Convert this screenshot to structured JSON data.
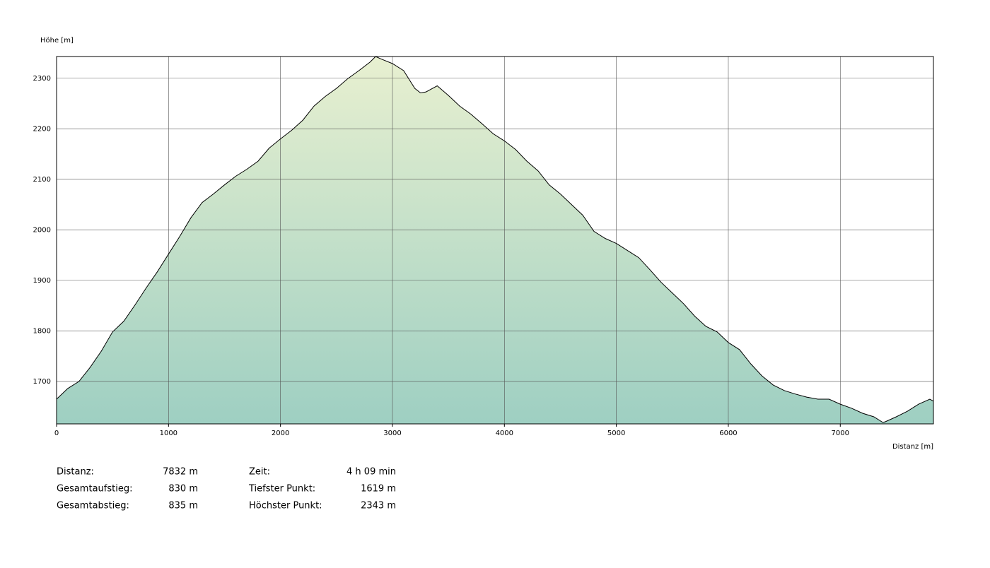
{
  "chart_data": {
    "type": "area",
    "y_label": "Höhe [m]",
    "x_label": "Distanz [m]",
    "x": [
      0,
      100,
      200,
      300,
      400,
      500,
      600,
      700,
      800,
      900,
      1000,
      1100,
      1200,
      1300,
      1400,
      1500,
      1600,
      1700,
      1800,
      1900,
      2000,
      2100,
      2200,
      2300,
      2400,
      2500,
      2600,
      2700,
      2800,
      2850,
      2900,
      3000,
      3100,
      3200,
      3250,
      3300,
      3400,
      3500,
      3600,
      3700,
      3800,
      3900,
      4000,
      4100,
      4200,
      4300,
      4400,
      4500,
      4600,
      4700,
      4800,
      4900,
      5000,
      5100,
      5200,
      5300,
      5400,
      5500,
      5600,
      5700,
      5800,
      5900,
      6000,
      6100,
      6200,
      6300,
      6400,
      6500,
      6600,
      6700,
      6800,
      6900,
      7000,
      7100,
      7200,
      7300,
      7380,
      7400,
      7500,
      7600,
      7700,
      7800,
      7832
    ],
    "series": [
      {
        "name": "Höhe",
        "color": "#000000",
        "values": [
          1665,
          1686,
          1700,
          1728,
          1760,
          1798,
          1819,
          1851,
          1885,
          1917,
          1952,
          1987,
          2024,
          2054,
          2071,
          2089,
          2106,
          2120,
          2136,
          2162,
          2180,
          2197,
          2217,
          2245,
          2264,
          2280,
          2299,
          2315,
          2332,
          2343,
          2338,
          2329,
          2315,
          2280,
          2271,
          2273,
          2285,
          2266,
          2245,
          2229,
          2210,
          2190,
          2176,
          2159,
          2136,
          2117,
          2089,
          2071,
          2050,
          2029,
          1997,
          1983,
          1973,
          1959,
          1945,
          1921,
          1896,
          1875,
          1854,
          1829,
          1809,
          1798,
          1777,
          1763,
          1735,
          1711,
          1693,
          1682,
          1675,
          1669,
          1665,
          1665,
          1655,
          1647,
          1637,
          1630,
          1619,
          1620,
          1630,
          1641,
          1655,
          1665,
          1661
        ]
      }
    ],
    "fill_top": "#e8f0d0",
    "fill_bottom": "#9ecfc2",
    "xlim": [
      0,
      7832
    ],
    "xticks": [
      0,
      1000,
      2000,
      3000,
      4000,
      5000,
      6000,
      7000
    ],
    "ylim": [
      1616,
      2343
    ],
    "yticks": [
      1700,
      1800,
      1900,
      2000,
      2100,
      2200,
      2300
    ],
    "grid": true
  },
  "stats": [
    {
      "label": "Distanz:",
      "value": "7832 m"
    },
    {
      "label": "Gesamtaufstieg:",
      "value": "830 m"
    },
    {
      "label": "Gesamtabstieg:",
      "value": "835 m"
    },
    {
      "label": "Zeit:",
      "value": "4 h 09 min"
    },
    {
      "label": "Tiefster Punkt:",
      "value": "1619 m"
    },
    {
      "label": "Höchster Punkt:",
      "value": "2343 m"
    }
  ]
}
